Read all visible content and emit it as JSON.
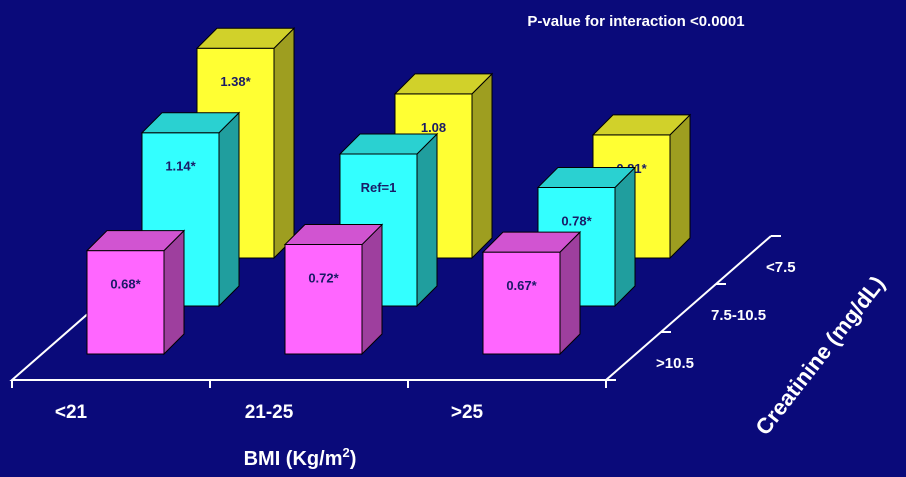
{
  "chart_data": {
    "type": "bar",
    "subtype": "3d-grouped-bar",
    "annotation": "P-value for interaction <0.0001",
    "xlabel": "BMI (Kg/m",
    "xlabel_sup": "2",
    "xlabel_tail": ")",
    "zlabel": "Creatinine (mg/dL)",
    "categories": [
      "<21",
      "21-25",
      ">25"
    ],
    "series": [
      {
        "name": ">10.5",
        "color": "#ff66ff",
        "labels": [
          "0.68*",
          "0.72*",
          "0.67*"
        ],
        "values": [
          0.68,
          0.72,
          0.67
        ]
      },
      {
        "name": "7.5-10.5",
        "color": "#33ffff",
        "labels": [
          "1.14*",
          "Ref=1",
          "0.78*"
        ],
        "values": [
          1.14,
          1.0,
          0.78
        ]
      },
      {
        "name": "<7.5",
        "color": "#ffff33",
        "labels": [
          "1.38*",
          "1.08",
          "0.81*"
        ],
        "values": [
          1.38,
          1.08,
          0.81
        ]
      }
    ]
  }
}
